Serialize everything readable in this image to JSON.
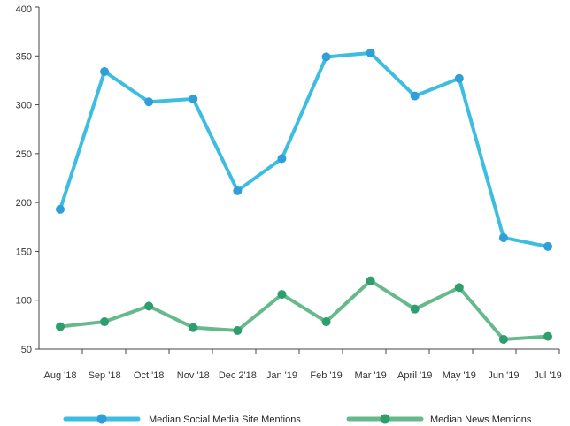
{
  "chart_data": {
    "type": "line",
    "categories": [
      "Aug '18",
      "Sep '18",
      "Oct '18",
      "Nov '18",
      "Dec 2'18",
      "Jan '19",
      "Feb '19",
      "Mar '19",
      "April '19",
      "May '19",
      "Jun '19",
      "Jul '19"
    ],
    "ylim": [
      50,
      400
    ],
    "yticks": [
      50,
      100,
      150,
      200,
      250,
      300,
      350,
      400
    ],
    "grid": false,
    "legend_position": "bottom",
    "series": [
      {
        "name": "Median Social Media Site Mentions",
        "color": "#3dbde0",
        "marker_color": "#2e9fd8",
        "values": [
          193,
          334,
          303,
          306,
          212,
          245,
          349,
          353,
          309,
          327,
          164,
          155
        ]
      },
      {
        "name": "Median News Mentions",
        "color": "#66b98a",
        "marker_color": "#2f9e6e",
        "values": [
          73,
          78,
          94,
          72,
          69,
          106,
          78,
          120,
          91,
          113,
          60,
          63
        ]
      }
    ]
  }
}
